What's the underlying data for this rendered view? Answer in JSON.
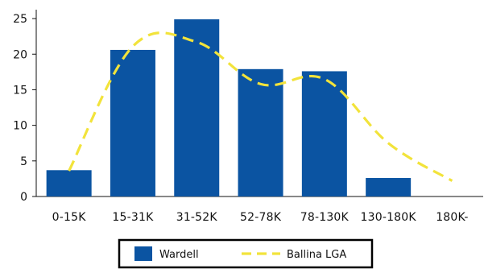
{
  "chart_data": {
    "type": "bar",
    "categories": [
      "0-15K",
      "15-31K",
      "31-52K",
      "52-78K",
      "78-130K",
      "130-180K",
      "180K-"
    ],
    "series": [
      {
        "name": "Wardell",
        "kind": "bar",
        "color": "#0b54a2",
        "values": [
          3.7,
          20.6,
          24.9,
          17.9,
          17.6,
          2.6,
          0
        ]
      },
      {
        "name": "Ballina LGA",
        "kind": "line",
        "color": "#f2e33b",
        "style": "dashed",
        "values": [
          3.6,
          21.1,
          21.7,
          15.8,
          16.5,
          7.5,
          2.2
        ]
      }
    ],
    "yticks": [
      0,
      5,
      10,
      15,
      20,
      25
    ],
    "ylim": [
      0,
      25.8
    ],
    "grid": false,
    "legend_placement": "bottom-center"
  }
}
